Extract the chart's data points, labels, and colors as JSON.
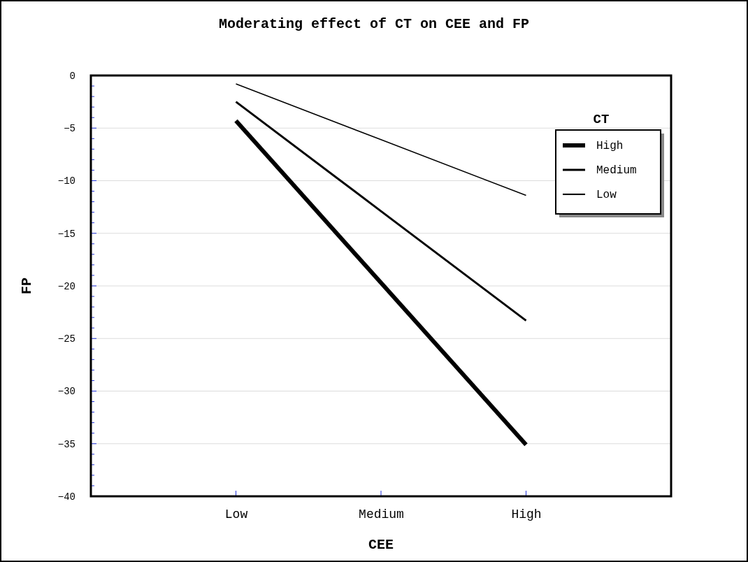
{
  "chart_data": {
    "type": "line",
    "title": "Moderating effect of CT on CEE and FP",
    "xlabel": "CEE",
    "ylabel": "FP",
    "legend_title": "CT",
    "categories": [
      "Low",
      "Medium",
      "High"
    ],
    "series": [
      {
        "name": "High",
        "color": "#000000",
        "values": [
          -4.3,
          -19.7,
          -35.1
        ]
      },
      {
        "name": "Medium",
        "color": "#000000",
        "values": [
          -2.5,
          -12.9,
          -23.3
        ]
      },
      {
        "name": "Low",
        "color": "#000000",
        "values": [
          -0.8,
          -6.1,
          -11.4
        ]
      }
    ],
    "ylim": [
      -40,
      0
    ],
    "yticks": [
      0,
      {
        "value": -1,
        "label": null
      },
      {
        "value": -2,
        "label": null
      },
      {
        "value": -3,
        "label": null
      },
      {
        "value": -4,
        "label": null
      },
      {
        "value": -5,
        "label": "−5"
      },
      {
        "value": -6,
        "label": null
      },
      {
        "value": -7,
        "label": null
      },
      {
        "value": -8,
        "label": null
      },
      {
        "value": -9,
        "label": null
      },
      {
        "value": -10,
        "label": "−10"
      },
      {
        "value": -11,
        "label": null
      },
      {
        "value": -12,
        "label": null
      },
      {
        "value": -13,
        "label": null
      },
      {
        "value": -14,
        "label": null
      },
      {
        "value": -15,
        "label": "−15"
      },
      {
        "value": -16,
        "label": null
      },
      {
        "value": -17,
        "label": null
      },
      {
        "value": -18,
        "label": null
      },
      {
        "value": -19,
        "label": null
      },
      {
        "value": -20,
        "label": "−20"
      },
      {
        "value": -21,
        "label": null
      },
      {
        "value": -22,
        "label": null
      },
      {
        "value": -23,
        "label": null
      },
      {
        "value": -24,
        "label": null
      },
      {
        "value": -25,
        "label": "−25"
      },
      {
        "value": -26,
        "label": null
      },
      {
        "value": -27,
        "label": null
      },
      {
        "value": -28,
        "label": null
      },
      {
        "value": -29,
        "label": null
      },
      {
        "value": -30,
        "label": "−30"
      },
      {
        "value": -31,
        "label": null
      },
      {
        "value": -32,
        "label": null
      },
      {
        "value": -33,
        "label": null
      },
      {
        "value": -34,
        "label": null
      },
      {
        "value": -35,
        "label": "−35"
      },
      {
        "value": -36,
        "label": null
      },
      {
        "value": -37,
        "label": null
      },
      {
        "value": -38,
        "label": null
      },
      {
        "value": -39,
        "label": null
      },
      {
        "value": -40,
        "label": "−40"
      }
    ],
    "grid": "y",
    "legend": "top right",
    "marker": "none",
    "line_style": "solid"
  }
}
